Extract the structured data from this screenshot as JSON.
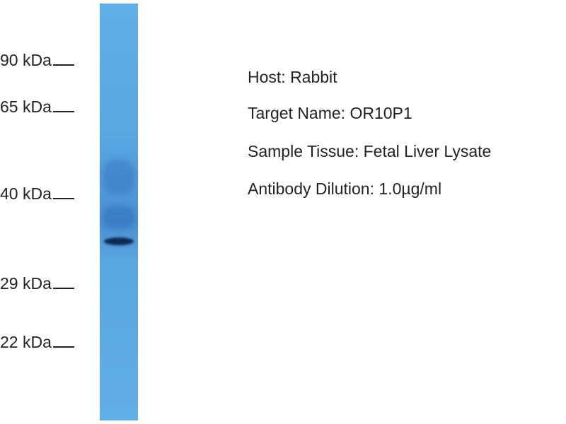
{
  "markers": [
    "90 kDa",
    "65 kDa",
    "40 kDa",
    "29 kDa",
    "22 kDa"
  ],
  "info": {
    "host": "Host: Rabbit",
    "target": "Target Name: OR10P1",
    "tissue": "Sample Tissue: Fetal Liver Lysate",
    "dilution": "Antibody Dilution: 1.0µg/ml"
  },
  "colors": {
    "lane": "#5ba8e2",
    "band": "#0d2a55"
  }
}
